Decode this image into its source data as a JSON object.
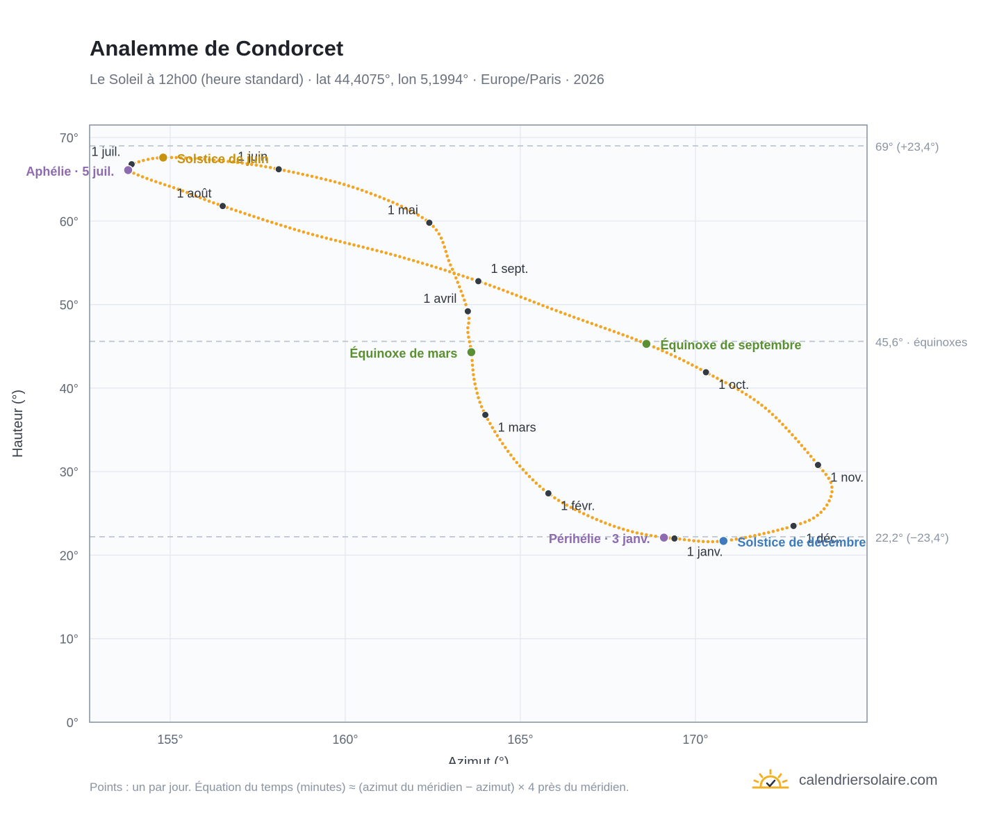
{
  "page": {
    "title": "Analemme de Condorcet",
    "subtitle": "Le Soleil à 12h00 (heure standard) · lat 44,4075°, lon 5,1994° · Europe/Paris · 2026",
    "footnote": "Points : un par jour. Équation du temps (minutes) ≈ (azimut du méridien − azimut) × 4 près du méridien.",
    "brand": "calendriersolaire.com",
    "brand_icon": "sun-check-icon"
  },
  "chart_data": {
    "type": "scatter",
    "xlabel": "Azimut (°)",
    "ylabel": "Hauteur (°)",
    "xlim": [
      152.7,
      174.9
    ],
    "ylim": [
      0,
      71.5
    ],
    "xticks": [
      {
        "v": 155,
        "label": "155°"
      },
      {
        "v": 160,
        "label": "160°"
      },
      {
        "v": 165,
        "label": "165°"
      },
      {
        "v": 170,
        "label": "170°"
      }
    ],
    "yticks": [
      {
        "v": 0,
        "label": "0°"
      },
      {
        "v": 10,
        "label": "10°"
      },
      {
        "v": 20,
        "label": "20°"
      },
      {
        "v": 30,
        "label": "30°"
      },
      {
        "v": 40,
        "label": "40°"
      },
      {
        "v": 50,
        "label": "50°"
      },
      {
        "v": 60,
        "label": "60°"
      },
      {
        "v": 70,
        "label": "70°"
      }
    ],
    "grid": true,
    "reference_lines": [
      {
        "y": 69.0,
        "label": "69° (+23,4°)"
      },
      {
        "y": 45.6,
        "label": "45,6° · équinoxes"
      },
      {
        "y": 22.2,
        "label": "22,2° (−23,4°)"
      }
    ],
    "series": [
      {
        "points": [
          [
            169.4,
            22.0
          ],
          [
            168.2,
            22.8
          ],
          [
            167.0,
            24.6
          ],
          [
            165.8,
            27.4
          ],
          [
            164.8,
            31.6
          ],
          [
            164.0,
            36.8
          ],
          [
            163.7,
            40.6
          ],
          [
            163.6,
            44.3
          ],
          [
            163.5,
            46.8
          ],
          [
            163.5,
            49.2
          ],
          [
            163.0,
            54.8
          ],
          [
            162.4,
            59.8
          ],
          [
            160.4,
            63.8
          ],
          [
            158.1,
            66.2
          ],
          [
            156.5,
            67.2
          ],
          [
            154.8,
            67.6
          ],
          [
            153.9,
            66.8
          ],
          [
            153.8,
            66.1
          ],
          [
            154.4,
            65.0
          ],
          [
            155.3,
            63.7
          ],
          [
            156.5,
            61.8
          ],
          [
            158.8,
            58.7
          ],
          [
            161.5,
            55.8
          ],
          [
            163.8,
            52.8
          ],
          [
            166.2,
            49.0
          ],
          [
            168.6,
            45.3
          ],
          [
            170.3,
            41.9
          ],
          [
            172.0,
            37.6
          ],
          [
            173.5,
            30.8
          ],
          [
            173.9,
            28.0
          ],
          [
            173.6,
            25.2
          ],
          [
            172.8,
            23.5
          ],
          [
            170.8,
            21.7
          ],
          [
            169.4,
            22.0
          ]
        ]
      }
    ],
    "month_markers": [
      {
        "label": "1 janv.",
        "x": 169.4,
        "y": 22.0,
        "anchor": "start",
        "dx": 18,
        "dy": 25
      },
      {
        "label": "1 févr.",
        "x": 165.8,
        "y": 27.4,
        "anchor": "start",
        "dx": 18,
        "dy": 24
      },
      {
        "label": "1 mars",
        "x": 164.0,
        "y": 36.8,
        "anchor": "start",
        "dx": 18,
        "dy": 24
      },
      {
        "label": "1 avril",
        "x": 163.5,
        "y": 49.2,
        "anchor": "end",
        "dx": -16,
        "dy": -12
      },
      {
        "label": "1 mai",
        "x": 162.4,
        "y": 59.8,
        "anchor": "end",
        "dx": -16,
        "dy": -12
      },
      {
        "label": "1 juin",
        "x": 158.1,
        "y": 66.2,
        "anchor": "end",
        "dx": -16,
        "dy": -12
      },
      {
        "label": "1 juil.",
        "x": 153.9,
        "y": 66.8,
        "anchor": "end",
        "dx": -16,
        "dy": -12
      },
      {
        "label": "1 août",
        "x": 156.5,
        "y": 61.8,
        "anchor": "end",
        "dx": -16,
        "dy": -12
      },
      {
        "label": "1 sept.",
        "x": 163.8,
        "y": 52.8,
        "anchor": "start",
        "dx": 18,
        "dy": -12
      },
      {
        "label": "1 oct.",
        "x": 170.3,
        "y": 41.9,
        "anchor": "start",
        "dx": 18,
        "dy": 24
      },
      {
        "label": "1 nov.",
        "x": 173.5,
        "y": 30.8,
        "anchor": "start",
        "dx": 18,
        "dy": 24
      },
      {
        "label": "1 déc.",
        "x": 172.8,
        "y": 23.5,
        "anchor": "start",
        "dx": 18,
        "dy": 24
      }
    ],
    "special_points": [
      {
        "label": "Solstice de juin",
        "x": 154.8,
        "y": 67.6,
        "color": "#c9920e",
        "anchor": "start",
        "dx": 20,
        "dy": 8
      },
      {
        "label": "Aphélie · 5 juil.",
        "x": 153.8,
        "y": 66.1,
        "color": "#8e6bb0",
        "anchor": "end",
        "dx": -20,
        "dy": 8
      },
      {
        "label": "Équinoxe de mars",
        "x": 163.6,
        "y": 44.3,
        "color": "#5a8f32",
        "anchor": "end",
        "dx": -20,
        "dy": 8
      },
      {
        "label": "Équinoxe de septembre",
        "x": 168.6,
        "y": 45.3,
        "color": "#5a8f32",
        "anchor": "start",
        "dx": 20,
        "dy": 8
      },
      {
        "label": "Périhélie · 3 janv.",
        "x": 169.1,
        "y": 22.1,
        "color": "#8e6bb0",
        "anchor": "end",
        "dx": -20,
        "dy": 8
      },
      {
        "label": "Solstice de décembre",
        "x": 170.8,
        "y": 21.7,
        "color": "#3d7bbd",
        "anchor": "start",
        "dx": 20,
        "dy": 8
      }
    ],
    "colors": {
      "curve": "#f2a523",
      "marker": "#333a44",
      "grid": "#e2e7ee",
      "axis": "#8c96a6",
      "plot_bg": "#f9fbfd",
      "refline": "#b8c2cf"
    }
  }
}
